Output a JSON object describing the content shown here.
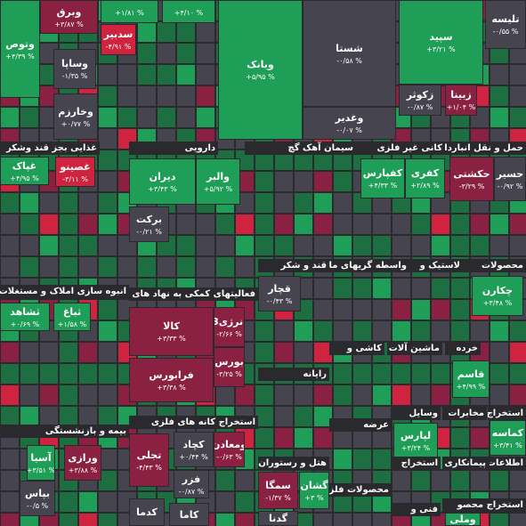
{
  "sectors": [
    "غذایی بجز قند وشکر",
    "دارویی",
    "سیمان آهک گچ",
    "کانی غیر فلزی",
    "حمل و نقل انبارداری",
    "قند و شکر",
    "واسطه گریهای مالی",
    "لاستیک و",
    "محصولات",
    "انبوه سازی املاک و مستغلات",
    "فعالیتهای کمکی به نهاد های",
    "کاشی و",
    "ماشین آلات",
    "خرده",
    "رایانه",
    "استخراج کانه های فلزی",
    "بیمه و بازنشستگی",
    "وسایل",
    "مخابرات",
    "استخراج",
    "عرضه",
    "هتل و رستوران",
    "استخراج",
    "پیمانکاری",
    "اطلاعات و",
    "محصولات فلزی",
    "فنی و",
    "استخراج محصو"
  ],
  "tiles": [
    {
      "label": "وبرق",
      "change": "+۳/۸۷ %"
    },
    {
      "change": "+۱/۸۱ %"
    },
    {
      "change": "+۴/۱۰ %"
    },
    {
      "label": "وبانک",
      "change": "+۵/۹۵ %"
    },
    {
      "label": "شستا",
      "change": "-۰/۵۸ %"
    },
    {
      "label": "سپید",
      "change": "+۳/۲۱ %"
    },
    {
      "label": "تلیسه",
      "change": "-۰/۵۵ %"
    },
    {
      "label": "وتوص",
      "change": "+۴/۳۹ %"
    },
    {
      "label": "سدبیر",
      "change": "-۴/۹۱ %"
    },
    {
      "label": "وساپا",
      "change": "-۱/۳۵ %"
    },
    {
      "label": "وخارزم",
      "change": "+۰/۷۷ %"
    },
    {
      "label": "وغدیر",
      "change": "-۰/۰۷ %"
    },
    {
      "label": "زکوثر",
      "change": "-۰/۸۷ %"
    },
    {
      "label": "زبینا",
      "change": "+۱/۰۴ %"
    },
    {
      "label": "غپاک",
      "change": "+۴/۹۵ %"
    },
    {
      "label": "غصینو",
      "change": "-۳/۱۱ %"
    },
    {
      "label": "دیران",
      "change": "+۳/۴۳ %"
    },
    {
      "label": "والبر",
      "change": "+۵/۹۲ %"
    },
    {
      "label": "برکت",
      "change": "-۰/۲۱ %"
    },
    {
      "label": "کفپارس",
      "change": "+۴/۳۳ %"
    },
    {
      "label": "کفری",
      "change": "+۲/۸۹ %"
    },
    {
      "label": "حکشتی",
      "change": "-۳/۲۹ %"
    },
    {
      "label": "حسیر",
      "change": "-۰/۹۲ %"
    },
    {
      "label": "چکارن",
      "change": "+۳/۴۸ %"
    },
    {
      "label": "قچار",
      "change": "-۰/۴۳ %"
    },
    {
      "label": "ثشاهد",
      "change": "+۰/۶۹ %"
    },
    {
      "label": "ثباغ",
      "change": "+۱/۵۸ %"
    },
    {
      "label": "کالا",
      "change": "+۳/۳۳ %"
    },
    {
      "label": "انرژی3",
      "change": "-۲/۶۶ %"
    },
    {
      "label": "بورس",
      "change": "-۳/۲۵ %"
    },
    {
      "label": "فرابورس",
      "change": "+۳/۳۸ %"
    },
    {
      "label": "قاسم",
      "change": "+۴/۹۹ %"
    },
    {
      "label": "لپارس",
      "change": "+۳/۲۴ %"
    },
    {
      "label": "کماسه",
      "change": "+۳/۴۱ %"
    },
    {
      "label": "کچاد",
      "change": "+۰/۴۴ %"
    },
    {
      "label": "ومعادن",
      "change": "-۰/۶۳ %"
    },
    {
      "label": "تجلی",
      "change": "-۴/۴۳ %"
    },
    {
      "label": "فزر",
      "change": "-۰/۸۷ %"
    },
    {
      "label": "کدما"
    },
    {
      "label": "کاما"
    },
    {
      "label": "آسیا",
      "change": "+۳/۵۱ %"
    },
    {
      "label": "ورازی",
      "change": "+۳/۸۸ %"
    },
    {
      "label": "بپاس",
      "change": "-۰/۵ %"
    },
    {
      "label": "سمگا",
      "change": "-۱/۳۷ %"
    },
    {
      "label": "گشان",
      "change": "+۳ %"
    },
    {
      "label": "گدنا"
    },
    {
      "label": "وملی"
    }
  ]
}
